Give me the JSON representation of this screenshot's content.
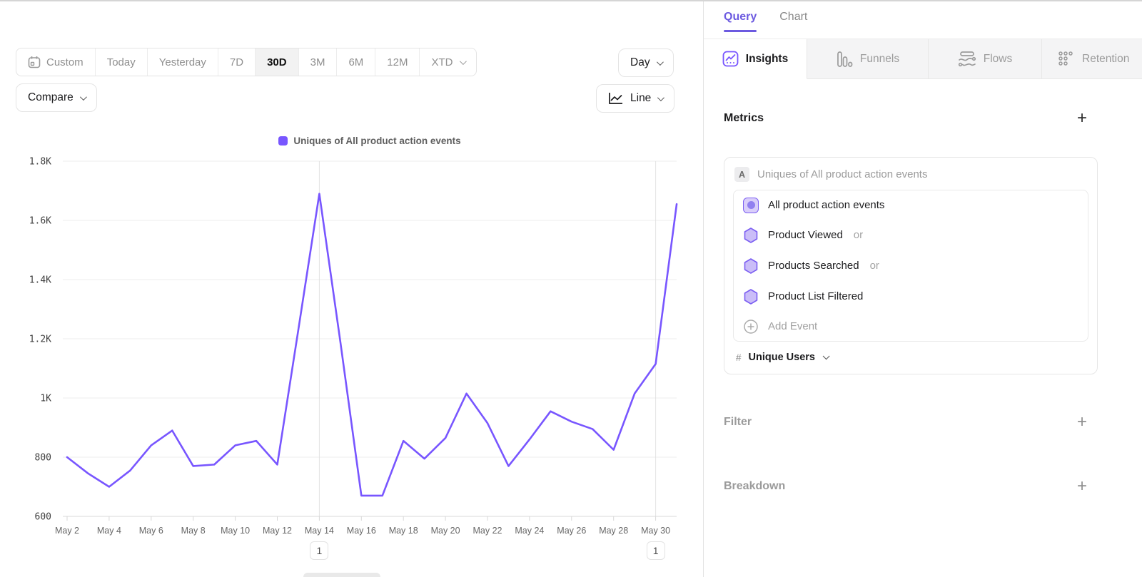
{
  "colors": {
    "accent": "#7856FF",
    "grid": "#ececec",
    "axis": "#d8d8d8",
    "annotation_line": "#e3e3e3"
  },
  "toolbar": {
    "date_ranges": [
      "Custom",
      "Today",
      "Yesterday",
      "7D",
      "30D",
      "3M",
      "6M",
      "12M",
      "XTD"
    ],
    "selected_range": "30D",
    "granularity": "Day",
    "compare": "Compare",
    "chart_type": "Line"
  },
  "legend": {
    "label": "Uniques of All product action events"
  },
  "chart_data": {
    "type": "line",
    "title": "Uniques of All product action events",
    "series_name": "Uniques of All product action events",
    "x": [
      "May 2",
      "May 3",
      "May 4",
      "May 5",
      "May 6",
      "May 7",
      "May 8",
      "May 9",
      "May 10",
      "May 11",
      "May 12",
      "May 13",
      "May 14",
      "May 15",
      "May 16",
      "May 17",
      "May 18",
      "May 19",
      "May 20",
      "May 21",
      "May 22",
      "May 23",
      "May 24",
      "May 25",
      "May 26",
      "May 27",
      "May 28",
      "May 29",
      "May 30",
      "May 31"
    ],
    "values": [
      800,
      745,
      700,
      755,
      840,
      890,
      770,
      775,
      840,
      855,
      775,
      1230,
      1690,
      1190,
      670,
      670,
      855,
      795,
      865,
      1015,
      915,
      770,
      860,
      955,
      920,
      895,
      825,
      1015,
      1115,
      1655
    ],
    "ylim": [
      600,
      1800
    ],
    "yticks": [
      {
        "value": 600,
        "label": "600"
      },
      {
        "value": 800,
        "label": "800"
      },
      {
        "value": 1000,
        "label": "1K"
      },
      {
        "value": 1200,
        "label": "1.2K"
      },
      {
        "value": 1400,
        "label": "1.4K"
      },
      {
        "value": 1600,
        "label": "1.6K"
      },
      {
        "value": 1800,
        "label": "1.8K"
      }
    ],
    "xtick_every": 2,
    "grid": true,
    "legend_position": "top"
  },
  "annotations": [
    {
      "date": "May 14",
      "label": "1"
    },
    {
      "date": "May 30",
      "label": "1"
    }
  ],
  "panel": {
    "view_tabs": {
      "query": "Query",
      "chart": "Chart"
    },
    "report_tabs": {
      "insights": "Insights",
      "funnels": "Funnels",
      "flows": "Flows",
      "retention": "Retention"
    },
    "metrics": {
      "title": "Metrics",
      "badge": "A",
      "summary": "Uniques of All product action events",
      "events": [
        {
          "label": "All product action events",
          "suffix": ""
        },
        {
          "label": "Product Viewed",
          "suffix": "or"
        },
        {
          "label": "Products Searched",
          "suffix": "or"
        },
        {
          "label": "Product List Filtered",
          "suffix": ""
        }
      ],
      "add_event": "Add Event",
      "aggregation_symbol": "#",
      "aggregation": "Unique Users"
    },
    "filter": {
      "title": "Filter"
    },
    "breakdown": {
      "title": "Breakdown"
    }
  }
}
